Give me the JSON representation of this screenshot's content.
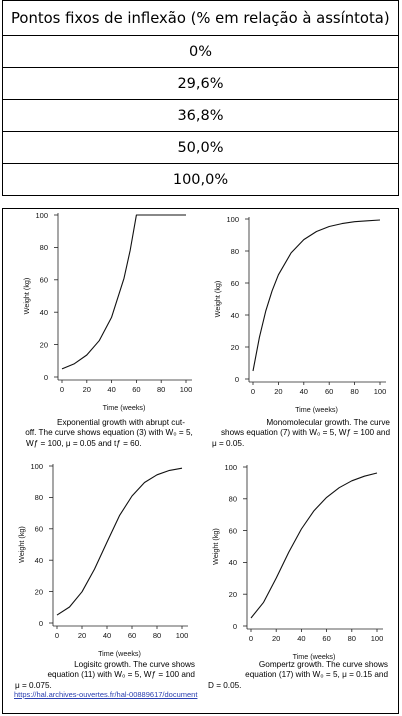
{
  "table": {
    "header": "Pontos fixos de inflexão (% em relação à assíntota)",
    "rows": [
      "0%",
      "29,6%",
      "36,8%",
      "50,0%",
      "100,0%"
    ]
  },
  "chart_data": [
    {
      "type": "line",
      "xlabel": "Time (weeks)",
      "ylabel": "Weight (kg)",
      "xlim": [
        0,
        100
      ],
      "ylim": [
        0,
        100
      ],
      "xticks": [
        0,
        20,
        40,
        60,
        80,
        100
      ],
      "yticks": [
        0,
        20,
        40,
        60,
        80,
        100
      ],
      "series": [
        {
          "x": [
            0,
            10,
            20,
            30,
            40,
            50,
            55,
            60,
            65,
            80,
            100
          ],
          "y": [
            5,
            8.2,
            13.6,
            22.4,
            36.9,
            60.9,
            78.3,
            100,
            100,
            100,
            100
          ]
        }
      ],
      "caption": [
        "Exponential growth with abrupt cut-",
        "off. The curve shows equation (3)  with W₀ = 5,",
        "Wƒ = 100, μ = 0.05 and tƒ = 60."
      ]
    },
    {
      "type": "line",
      "xlabel": "Time (weeks)",
      "ylabel": "Weight (kg)",
      "xlim": [
        0,
        100
      ],
      "ylim": [
        0,
        100
      ],
      "xticks": [
        0,
        20,
        40,
        60,
        80,
        100
      ],
      "yticks": [
        0,
        20,
        40,
        60,
        80,
        100
      ],
      "series": [
        {
          "x": [
            0,
            5,
            10,
            15,
            20,
            30,
            40,
            50,
            60,
            70,
            80,
            90,
            100
          ],
          "y": [
            5,
            26,
            42.4,
            55.1,
            65.1,
            78.8,
            87.1,
            92.2,
            95.3,
            97.1,
            98.3,
            98.9,
            99.4
          ]
        }
      ],
      "caption": [
        "Monomolecular growth. The curve",
        "shows equation (7) with W₀ = 5, Wƒ = 100 and",
        "μ = 0.05."
      ]
    },
    {
      "type": "line",
      "xlabel": "Time (weeks)",
      "ylabel": "Weight (kg)",
      "xlim": [
        0,
        100
      ],
      "ylim": [
        0,
        100
      ],
      "xticks": [
        0,
        20,
        40,
        60,
        80,
        100
      ],
      "yticks": [
        0,
        20,
        40,
        60,
        80,
        100
      ],
      "series": [
        {
          "x": [
            0,
            10,
            20,
            30,
            40,
            50,
            60,
            70,
            80,
            90,
            100
          ],
          "y": [
            5,
            10.2,
            19.9,
            34.3,
            51.5,
            68.4,
            80.9,
            89.5,
            94.4,
            97.2,
            98.6
          ]
        }
      ],
      "caption": [
        "Logisitc growth. The curve shows",
        "equation (11) with W₀ = 5, Wƒ = 100 and",
        "μ = 0.075."
      ]
    },
    {
      "type": "line",
      "xlabel": "Time (weeks)",
      "ylabel": "Weight (kg)",
      "xlim": [
        0,
        100
      ],
      "ylim": [
        0,
        100
      ],
      "xticks": [
        0,
        20,
        40,
        60,
        80,
        100
      ],
      "yticks": [
        0,
        20,
        40,
        60,
        80,
        100
      ],
      "series": [
        {
          "x": [
            0,
            10,
            20,
            30,
            40,
            50,
            60,
            70,
            80,
            90,
            100
          ],
          "y": [
            5,
            14.9,
            30.1,
            46.5,
            61,
            72.5,
            80.9,
            87,
            91.3,
            94.2,
            96.2
          ]
        }
      ],
      "caption": [
        "Gompertz growth. The curve shows",
        "equation (17) with W₀ = 5, μ = 0.15 and",
        "D = 0.05."
      ]
    }
  ],
  "source_link": "https://hal.archives-ouvertes.fr/hal-00889617/document"
}
